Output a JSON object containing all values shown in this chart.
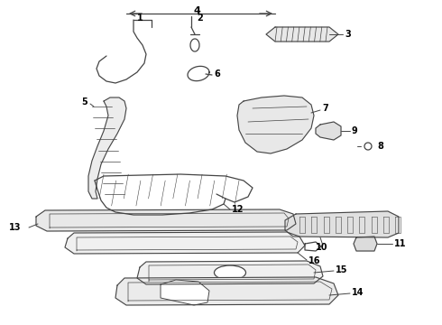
{
  "bg_color": "#ffffff",
  "line_color": "#444444",
  "text_color": "#000000",
  "figsize": [
    4.9,
    3.6
  ],
  "dpi": 100,
  "image_b64": ""
}
